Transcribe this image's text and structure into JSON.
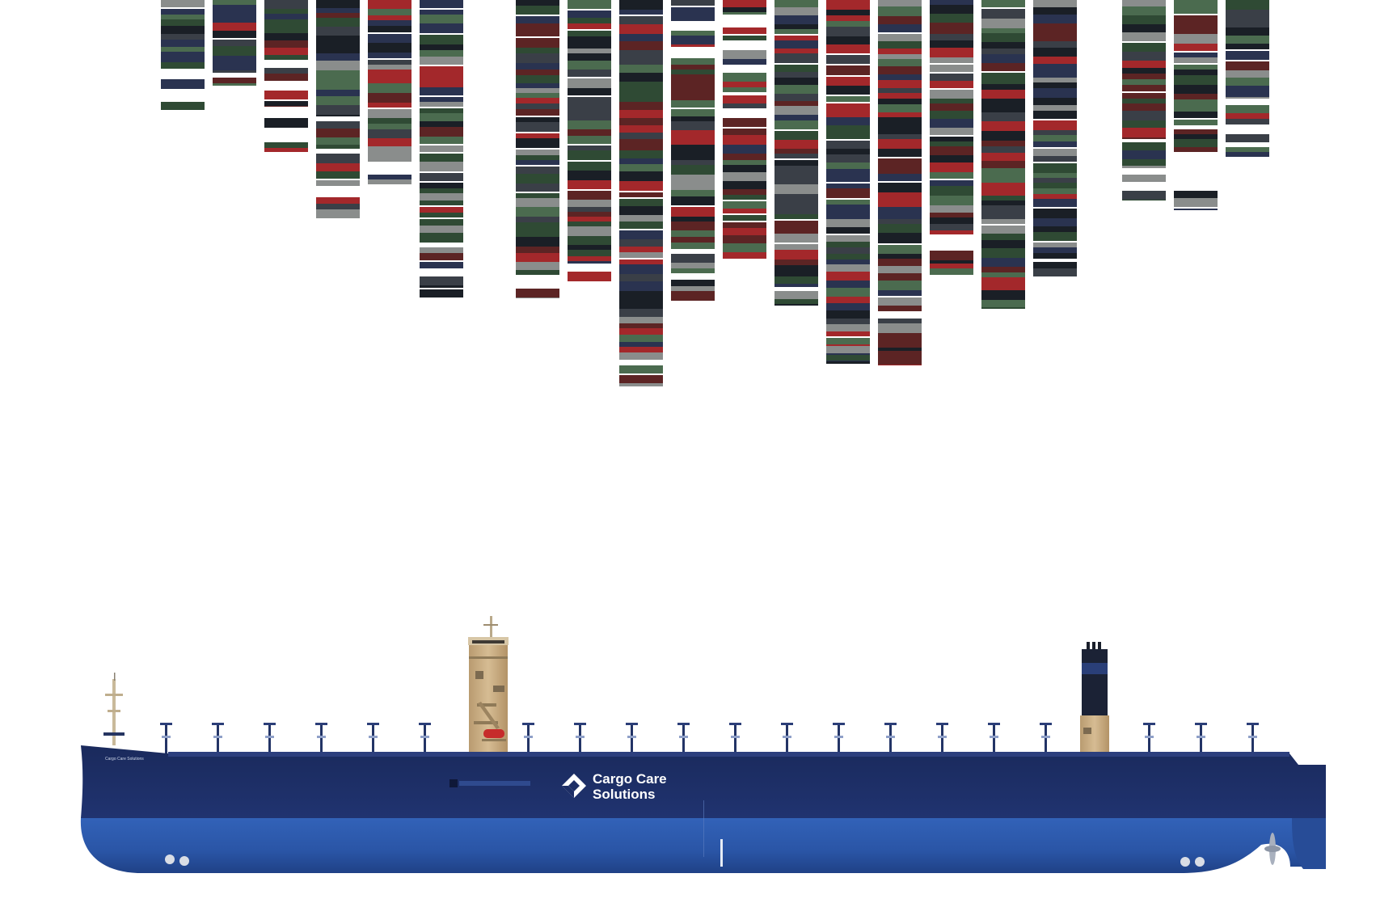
{
  "brand": {
    "name_line1": "Cargo Care",
    "name_line2": "Solutions",
    "bow_name": "Cargo Care Solutions",
    "logo_icon": "cargo-care-diamond-logo-icon"
  },
  "colors": {
    "background": "#ffffff",
    "hull_upper": "#1b2b5e",
    "hull_lower": "#2a55a6",
    "superstructure": "#c9ad82",
    "funnel": "#1e2a4a",
    "container_palette": [
      "#1a1f26",
      "#a3282b",
      "#2f4a34",
      "#2a3350",
      "#8a8d8c",
      "#3a3f47",
      "#5c2424",
      "#4b6b4f"
    ]
  }
}
